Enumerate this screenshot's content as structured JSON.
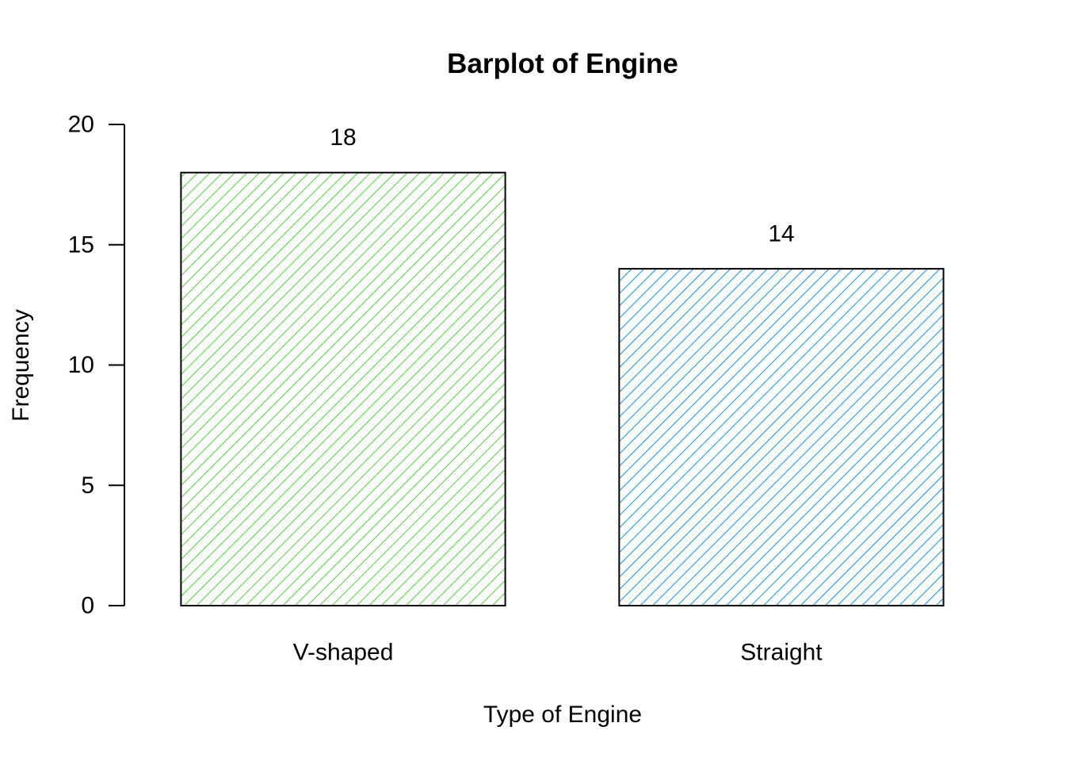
{
  "chart_data": {
    "type": "bar",
    "title": "Barplot of Engine",
    "xlabel": "Type of Engine",
    "ylabel": "Frequency",
    "categories": [
      "V-shaped",
      "Straight"
    ],
    "values": [
      18,
      14
    ],
    "data_labels": [
      "18",
      "14"
    ],
    "ylim": [
      0,
      20
    ],
    "yticks": [
      0,
      5,
      10,
      15,
      20
    ],
    "ytick_labels": [
      "0",
      "5",
      "10",
      "15",
      "20"
    ],
    "colors": [
      "#61D04F",
      "#2297E6"
    ],
    "fill_pattern": "diagonal-hatch",
    "grid": false,
    "legend": "none"
  }
}
